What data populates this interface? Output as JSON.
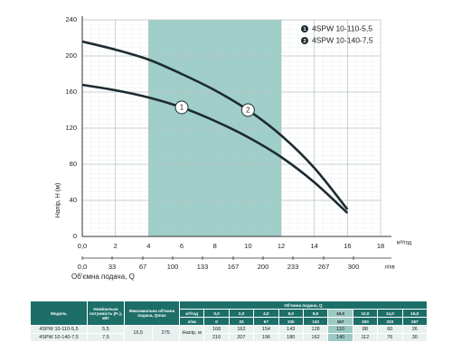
{
  "chart_data": {
    "type": "line",
    "ylabel": "Напір, Н (м)",
    "xlabel": "Об'ємна подача, Q",
    "xunit": "м³/год",
    "x2unit": "л/хв",
    "x": [
      0,
      2,
      4,
      6,
      8,
      10,
      12,
      14,
      16
    ],
    "series": [
      {
        "name": "4SPW 10-110-5,5",
        "label": "1",
        "color": "#1c2b31",
        "values": [
          168,
          162,
          154,
          143,
          128,
          110,
          88,
          60,
          26
        ]
      },
      {
        "name": "4SPW 10-140-7,5",
        "label": "2",
        "color": "#1c2b31",
        "values": [
          216,
          207,
          196,
          180,
          162,
          140,
          112,
          76,
          30
        ]
      }
    ],
    "xlim": [
      0,
      18
    ],
    "ylim": [
      0,
      240
    ],
    "xticks": [
      {
        "value": 0,
        "label": "0,0"
      },
      2,
      4,
      6,
      8,
      10,
      12,
      14,
      16,
      18
    ],
    "yticks": [
      0,
      40,
      80,
      120,
      160,
      200,
      240
    ],
    "x2lim": [
      0,
      330
    ],
    "x2ticks": [
      {
        "value": 0,
        "label": "0,0"
      },
      33,
      67,
      100,
      133,
      167,
      200,
      233,
      267,
      300
    ],
    "highlight_range": [
      4,
      12
    ],
    "highlight_color": "#8fc5bf",
    "grid": true
  },
  "table": {
    "header": {
      "model": "Модель",
      "power": "Номінальна потужність (P₂), кВт",
      "qmax": "Максимальна об'ємна подача, Qmax",
      "flow": "Об'ємна подача, Q"
    },
    "units": [
      "м³/год",
      "л/хв"
    ],
    "flow_m3": [
      "0,0",
      "2,0",
      "4,0",
      "6,0",
      "8,0",
      "10,0",
      "12,0",
      "14,0",
      "16,0"
    ],
    "flow_lmin": [
      "0",
      "33",
      "67",
      "100",
      "133",
      "167",
      "200",
      "233",
      "267"
    ],
    "qmax_m3": "16,5",
    "qmax_lmin": "275",
    "head_label": "Напір, м",
    "highlight_column": 5,
    "rows": [
      {
        "model": "4SPW 10-110-5,5",
        "power": "5,5",
        "values": [
          168,
          162,
          154,
          143,
          128,
          110,
          88,
          60,
          26
        ]
      },
      {
        "model": "4SPW 10-140-7,5",
        "power": "7,5",
        "values": [
          216,
          207,
          196,
          180,
          162,
          140,
          112,
          76,
          30
        ]
      }
    ]
  }
}
